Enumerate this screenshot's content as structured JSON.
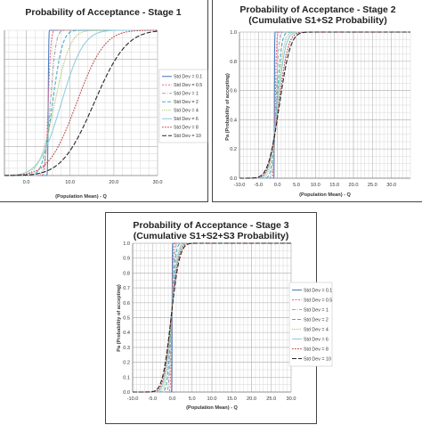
{
  "chart_data": [
    {
      "type": "line",
      "title": "Probability of Acceptance - Stage 1",
      "subtitle": "",
      "xlabel": "(Population Mean) - Q",
      "ylabel": "",
      "xlim": [
        -5,
        30
      ],
      "ylim": [
        0,
        1
      ],
      "xticks": [
        "0.0",
        "10.0",
        "20.0",
        "30.0"
      ],
      "xtick_values": [
        0,
        10,
        20,
        30
      ],
      "yticks": [],
      "ytick_values": [],
      "grid": true,
      "legend": "right",
      "series": [
        {
          "name": "Std Dev = 0.1",
          "mu": 5.0,
          "sigma": 0.1,
          "color": "#4f81bd",
          "dash": ""
        },
        {
          "name": "Std Dev = 0.5",
          "mu": 5.0,
          "sigma": 0.5,
          "color": "#e46c8a",
          "dash": "2,1.5"
        },
        {
          "name": "Std Dev = 1",
          "mu": 5.5,
          "sigma": 1.0,
          "color": "#a6a6a6",
          "dash": "4,1.5,1,1.5"
        },
        {
          "name": "Std Dev = 2",
          "mu": 6.0,
          "sigma": 1.8,
          "color": "#4bacc6",
          "dash": "4,2"
        },
        {
          "name": "Std Dev = 4",
          "mu": 6.5,
          "sigma": 2.8,
          "color": "#9bbb59",
          "dash": "1,1.2"
        },
        {
          "name": "Std Dev = 6",
          "mu": 8.0,
          "sigma": 4.0,
          "color": "#93cddd",
          "dash": ""
        },
        {
          "name": "Std Dev = 8",
          "mu": 11.5,
          "sigma": 5.0,
          "color": "#c0504d",
          "dash": "1.8,1.2"
        },
        {
          "name": "Std Dev = 10",
          "mu": 15.5,
          "sigma": 5.8,
          "color": "#262626",
          "dash": "5,2"
        }
      ]
    },
    {
      "type": "line",
      "title": "Probability of Acceptance - Stage 2",
      "subtitle": "(Cumulative S1+S2 Probability)",
      "xlabel": "(Population Mean) - Q",
      "ylabel": "Pa (Probability of accepting)",
      "xlim": [
        -10,
        35
      ],
      "ylim": [
        0,
        1
      ],
      "xticks": [
        "-10.0",
        "-5.0",
        "0.0",
        "5.0",
        "10.0",
        "15.0",
        "20.0",
        "25.0",
        "30.0"
      ],
      "xtick_values": [
        -10,
        -5,
        0,
        5,
        10,
        15,
        20,
        25,
        30
      ],
      "yticks": [
        "0.0",
        "0.2",
        "0.4",
        "0.6",
        "0.8",
        "1.0"
      ],
      "ytick_values": [
        0,
        0.2,
        0.4,
        0.6,
        0.8,
        1.0
      ],
      "grid": true,
      "legend": "right",
      "series": [
        {
          "name": "",
          "mu": -0.8,
          "sigma": 0.05,
          "color": "#4f81bd",
          "dash": ""
        },
        {
          "name": "",
          "mu": -0.6,
          "sigma": 0.3,
          "color": "#e46c8a",
          "dash": "2,1.5"
        },
        {
          "name": "",
          "mu": -0.4,
          "sigma": 0.6,
          "color": "#a6a6a6",
          "dash": "4,1.5,1,1.5"
        },
        {
          "name": "",
          "mu": -0.2,
          "sigma": 1.0,
          "color": "#4bacc6",
          "dash": "4,2"
        },
        {
          "name": "",
          "mu": -0.1,
          "sigma": 1.4,
          "color": "#9bbb59",
          "dash": "1,1.2"
        },
        {
          "name": "",
          "mu": 0.0,
          "sigma": 1.7,
          "color": "#93cddd",
          "dash": ""
        },
        {
          "name": "",
          "mu": 0.3,
          "sigma": 2.0,
          "color": "#c0504d",
          "dash": "1.8,1.2"
        },
        {
          "name": "",
          "mu": 0.5,
          "sigma": 2.3,
          "color": "#262626",
          "dash": "5,2"
        }
      ]
    },
    {
      "type": "line",
      "title": "Probability of Acceptance - Stage 3",
      "subtitle": "(Cumulative S1+S2+S3 Probability)",
      "xlabel": "(Population Mean) - Q",
      "ylabel": "Pa (Probability of accepting)",
      "xlim": [
        -10,
        30
      ],
      "ylim": [
        0,
        1
      ],
      "xticks": [
        "-10.0",
        "-5.0",
        "0.0",
        "5.0",
        "10.0",
        "15.0",
        "20.0",
        "25.0",
        "30.0"
      ],
      "xtick_values": [
        -10,
        -5,
        0,
        5,
        10,
        15,
        20,
        25,
        30
      ],
      "yticks": [
        "0.0",
        "0.1",
        "0.2",
        "0.3",
        "0.4",
        "0.5",
        "0.6",
        "0.7",
        "0.8",
        "0.9",
        "1.0"
      ],
      "ytick_values": [
        0,
        0.1,
        0.2,
        0.3,
        0.4,
        0.5,
        0.6,
        0.7,
        0.8,
        0.9,
        1.0
      ],
      "grid": true,
      "legend": "right",
      "series": [
        {
          "name": "Std Dev = 0.1",
          "mu": -0.05,
          "sigma": 0.05,
          "color": "#4f81bd",
          "dash": ""
        },
        {
          "name": "Std Dev = 0.5",
          "mu": -0.1,
          "sigma": 0.25,
          "color": "#e46c8a",
          "dash": "2,1.5"
        },
        {
          "name": "Std Dev = 1",
          "mu": -0.15,
          "sigma": 0.5,
          "color": "#a6a6a6",
          "dash": "4,1.5,1,1.5"
        },
        {
          "name": "Std Dev = 2",
          "mu": -0.2,
          "sigma": 0.8,
          "color": "#4bacc6",
          "dash": "4,2"
        },
        {
          "name": "Std Dev = 4",
          "mu": -0.2,
          "sigma": 1.1,
          "color": "#9bbb59",
          "dash": "1,1.2"
        },
        {
          "name": "Std Dev = 6",
          "mu": -0.3,
          "sigma": 1.3,
          "color": "#93cddd",
          "dash": ""
        },
        {
          "name": "Std Dev = 8",
          "mu": -0.3,
          "sigma": 1.5,
          "color": "#c0504d",
          "dash": "1.8,1.2"
        },
        {
          "name": "Std Dev = 10",
          "mu": -0.3,
          "sigma": 1.7,
          "color": "#262626",
          "dash": "5,2"
        }
      ]
    }
  ]
}
